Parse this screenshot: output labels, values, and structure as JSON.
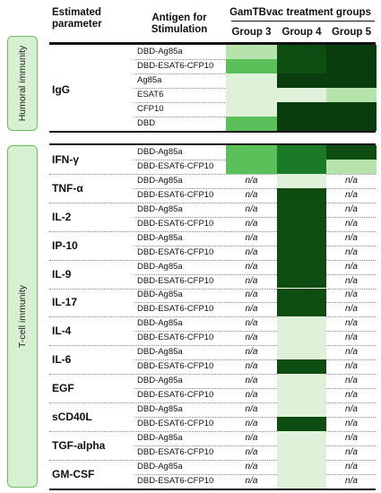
{
  "headers": {
    "param": "Estimated parameter",
    "antigen": "Antigen for Stimulation",
    "treatment": "GamTBvac treatment groups",
    "groups": [
      "Group 3",
      "Group 4",
      "Group 5"
    ]
  },
  "sections": [
    {
      "label": "Humoral immunity"
    },
    {
      "label": "T-cell immunity"
    }
  ],
  "colors": {
    "very_light": "#dff2d9",
    "light": "#b6e2ac",
    "medium": "#5cc05a",
    "strong": "#1b7a26",
    "dark": "#0d4d12",
    "darkest": "#0a3d0e",
    "side_fill": "#d8f0d2",
    "side_border": "#6cbf5c"
  },
  "na_text": "n/a",
  "humoral_rows": [
    {
      "antigen": "DBD-Ag85a",
      "cells": [
        "light",
        "dark",
        "darkest"
      ]
    },
    {
      "antigen": "DBD-ESAT6-CFP10",
      "cells": [
        "medium",
        "dark",
        "darkest"
      ]
    },
    {
      "antigen": "Ag85a",
      "cells": [
        "very_light",
        "darkest",
        "darkest"
      ]
    },
    {
      "antigen": "ESAT6",
      "cells": [
        "very_light",
        "very_light",
        "light"
      ]
    },
    {
      "antigen": "CFP10",
      "cells": [
        "very_light",
        "darkest",
        "darkest"
      ]
    },
    {
      "antigen": "DBD",
      "cells": [
        "medium",
        "darkest",
        "darkest"
      ]
    }
  ],
  "humoral_param": "IgG",
  "tcell_rows": [
    {
      "param": "IFN-γ",
      "antigen": "DBD-Ag85a",
      "cells": [
        "medium",
        "strong",
        "dark"
      ]
    },
    {
      "param": "",
      "antigen": "DBD-ESAT6-CFP10",
      "cells": [
        "medium",
        "strong",
        "light"
      ]
    },
    {
      "param": "TNF-α",
      "antigen": "DBD-Ag85a",
      "cells": [
        "na",
        "very_light",
        "na"
      ]
    },
    {
      "param": "",
      "antigen": "DBD-ESAT6-CFP10",
      "cells": [
        "na",
        "dark",
        "na"
      ]
    },
    {
      "param": "IL-2",
      "antigen": "DBD-Ag85a",
      "cells": [
        "na",
        "dark",
        "na"
      ]
    },
    {
      "param": "",
      "antigen": "DBD-ESAT6-CFP10",
      "cells": [
        "na",
        "dark",
        "na"
      ]
    },
    {
      "param": "IP-10",
      "antigen": "DBD-Ag85a",
      "cells": [
        "na",
        "dark",
        "na"
      ]
    },
    {
      "param": "",
      "antigen": "DBD-ESAT6-CFP10",
      "cells": [
        "na",
        "dark",
        "na"
      ]
    },
    {
      "param": "IL-9",
      "antigen": "DBD-Ag85a",
      "cells": [
        "na",
        "dark",
        "na"
      ]
    },
    {
      "param": "",
      "antigen": "DBD-ESAT6-CFP10",
      "cells": [
        "na",
        "dark",
        "na"
      ]
    },
    {
      "param": "IL-17",
      "antigen": "DBD-Ag85a",
      "cells": [
        "na",
        "dark",
        "na"
      ]
    },
    {
      "param": "",
      "antigen": "DBD-ESAT6-CFP10",
      "cells": [
        "na",
        "dark",
        "na"
      ]
    },
    {
      "param": "IL-4",
      "antigen": "DBD-Ag85a",
      "cells": [
        "na",
        "very_light",
        "na"
      ]
    },
    {
      "param": "",
      "antigen": "DBD-ESAT6-CFP10",
      "cells": [
        "na",
        "very_light",
        "na"
      ]
    },
    {
      "param": "IL-6",
      "antigen": "DBD-Ag85a",
      "cells": [
        "na",
        "very_light",
        "na"
      ]
    },
    {
      "param": "",
      "antigen": "DBD-ESAT6-CFP10",
      "cells": [
        "na",
        "dark",
        "na"
      ]
    },
    {
      "param": "EGF",
      "antigen": "DBD-Ag85a",
      "cells": [
        "na",
        "very_light",
        "na"
      ]
    },
    {
      "param": "",
      "antigen": "DBD-ESAT6-CFP10",
      "cells": [
        "na",
        "very_light",
        "na"
      ]
    },
    {
      "param": "sCD40L",
      "antigen": "DBD-Ag85a",
      "cells": [
        "na",
        "very_light",
        "na"
      ]
    },
    {
      "param": "",
      "antigen": "DBD-ESAT6-CFP10",
      "cells": [
        "na",
        "dark",
        "na"
      ]
    },
    {
      "param": "TGF-alpha",
      "antigen": "DBD-Ag85a",
      "cells": [
        "na",
        "very_light",
        "na"
      ]
    },
    {
      "param": "",
      "antigen": "DBD-ESAT6-CFP10",
      "cells": [
        "na",
        "very_light",
        "na"
      ]
    },
    {
      "param": "GM-CSF",
      "antigen": "DBD-Ag85a",
      "cells": [
        "na",
        "very_light",
        "na"
      ]
    },
    {
      "param": "",
      "antigen": "DBD-ESAT6-CFP10",
      "cells": [
        "na",
        "very_light",
        "na"
      ]
    }
  ]
}
